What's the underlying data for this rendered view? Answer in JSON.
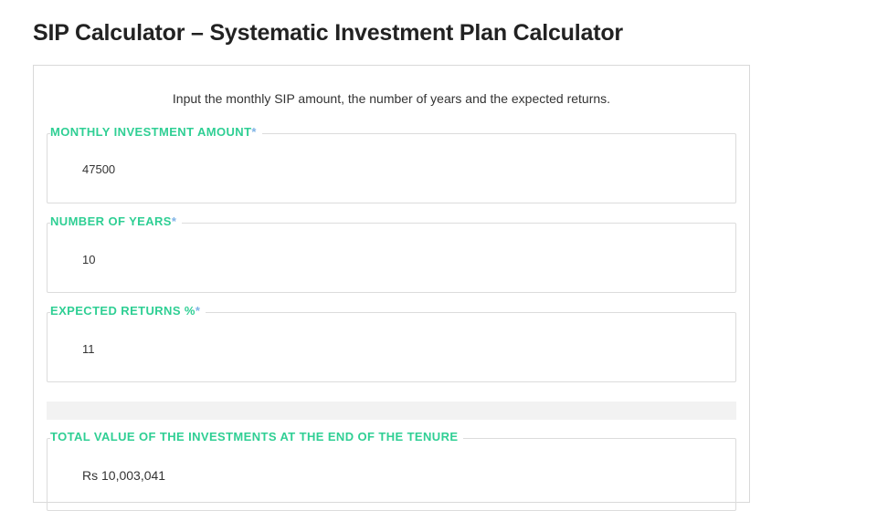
{
  "page": {
    "title": "SIP Calculator – Systematic Investment Plan Calculator",
    "intro": "Input the monthly SIP amount, the number of years and the expected returns."
  },
  "fields": [
    {
      "label": "MONTHLY INVESTMENT AMOUNT",
      "required": "*",
      "value": "47500"
    },
    {
      "label": "NUMBER OF YEARS",
      "required": "*",
      "value": "10"
    },
    {
      "label": "EXPECTED RETURNS %",
      "required": "*",
      "value": "11"
    }
  ],
  "result": {
    "label": "TOTAL VALUE OF THE INVESTMENTS AT THE END OF THE TENURE",
    "value": "Rs 10,003,041"
  },
  "colors": {
    "label": "#2fcf94",
    "asterisk": "#7fb3e6"
  }
}
